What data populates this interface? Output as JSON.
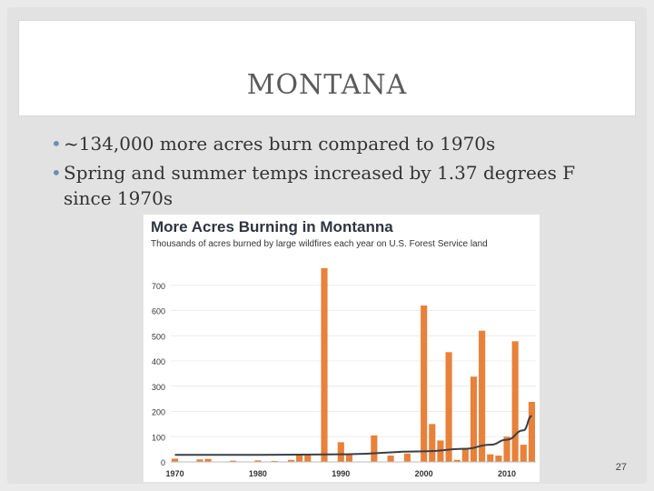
{
  "slide": {
    "title": "MONTANA",
    "bullets": [
      "~134,000 more acres burn compared to 1970s",
      "Spring and summer temps increased by 1.37 degrees F since 1970s"
    ],
    "slide_number": "27"
  },
  "chart_data": {
    "type": "bar",
    "title": "More Acres Burning in Montanna",
    "subtitle": "Thousands of acres burned by large wildfires each year on U.S. Forest Service land",
    "xlabel": "",
    "ylabel": "",
    "ylim": [
      0,
      800
    ],
    "yticks": [
      0,
      100,
      200,
      300,
      400,
      500,
      600,
      700
    ],
    "xticks": [
      1970,
      1980,
      1990,
      2000,
      2010
    ],
    "bar_color": "#e8813a",
    "trend_color": "#3a3f47",
    "categories": [
      1970,
      1971,
      1972,
      1973,
      1974,
      1975,
      1976,
      1977,
      1978,
      1979,
      1980,
      1981,
      1982,
      1983,
      1984,
      1985,
      1986,
      1987,
      1988,
      1989,
      1990,
      1991,
      1992,
      1993,
      1994,
      1995,
      1996,
      1997,
      1998,
      1999,
      2000,
      2001,
      2002,
      2003,
      2004,
      2005,
      2006,
      2007,
      2008,
      2009,
      2010,
      2011,
      2012,
      2013
    ],
    "values": [
      13,
      0,
      0,
      10,
      12,
      0,
      0,
      5,
      0,
      0,
      6,
      0,
      4,
      0,
      8,
      28,
      28,
      0,
      768,
      0,
      78,
      28,
      0,
      0,
      105,
      0,
      25,
      0,
      33,
      0,
      620,
      150,
      85,
      435,
      8,
      55,
      338,
      520,
      30,
      25,
      100,
      478,
      68,
      238
    ],
    "trend": [
      [
        1970,
        28
      ],
      [
        1980,
        28
      ],
      [
        1990,
        30
      ],
      [
        2000,
        42
      ],
      [
        2005,
        52
      ],
      [
        2008,
        68
      ],
      [
        2010,
        88
      ],
      [
        2012,
        125
      ],
      [
        2013,
        182
      ]
    ]
  }
}
